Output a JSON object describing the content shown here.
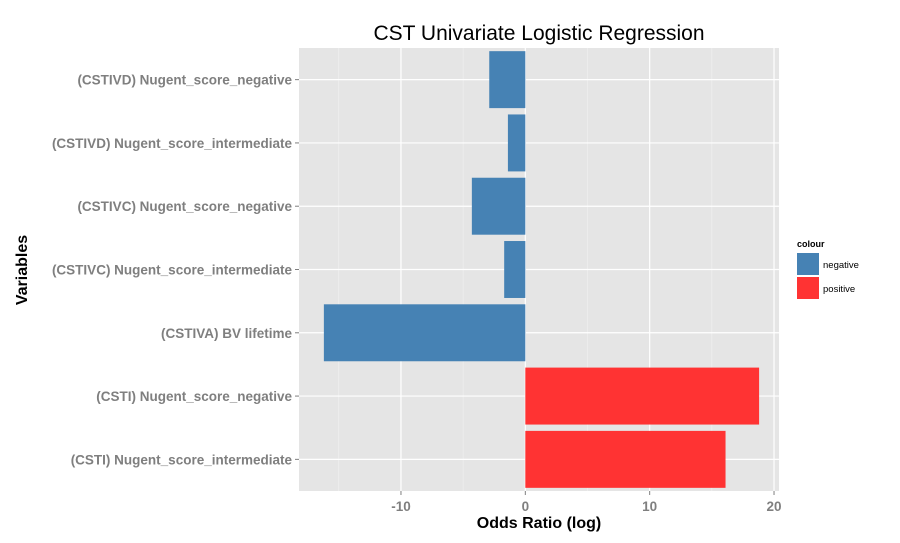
{
  "chart_data": {
    "type": "bar",
    "orientation": "horizontal",
    "title": "CST Univariate Logistic Regression",
    "xlabel": "Odds Ratio (log)",
    "ylabel": "Variables",
    "xlim": [
      -18.2,
      20.4
    ],
    "xticks": [
      -10,
      0,
      10,
      20
    ],
    "xtick_labels": [
      "-10",
      "0",
      "10",
      "20"
    ],
    "grid": true,
    "categories": [
      "(CSTIVD) Nugent_score_negative",
      "(CSTIVD) Nugent_score_intermediate",
      "(CSTIVC) Nugent_score_negative",
      "(CSTIVC) Nugent_score_intermediate",
      "(CSTIVA) BV lifetime",
      "(CSTI) Nugent_score_negative",
      "(CSTI) Nugent_score_intermediate"
    ],
    "values": [
      -2.9,
      -1.4,
      -4.3,
      -1.7,
      -16.2,
      18.8,
      16.1
    ],
    "colour_groups": [
      "negative",
      "negative",
      "negative",
      "negative",
      "negative",
      "positive",
      "positive"
    ],
    "legend": {
      "title": "colour",
      "position": "right",
      "entries": [
        {
          "label": "negative",
          "color": "#4682b4"
        },
        {
          "label": "positive",
          "color": "#ff3333"
        }
      ]
    },
    "colors": {
      "negative": "#4682b4",
      "positive": "#ff3333",
      "panel_background": "#e5e5e5",
      "grid": "#ffffff"
    }
  }
}
